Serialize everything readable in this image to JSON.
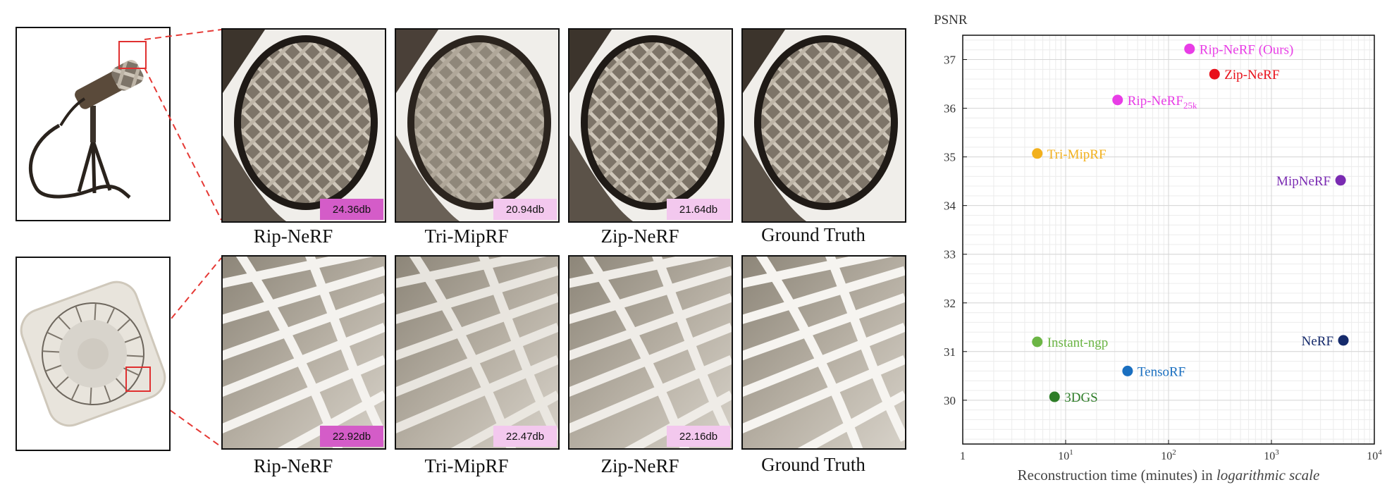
{
  "rows": [
    {
      "scene": "microphone",
      "methods": [
        {
          "label": "Rip-NeRF",
          "score": "24.36db",
          "badge": "strong"
        },
        {
          "label": "Tri-MipRF",
          "score": "20.94db",
          "badge": "light"
        },
        {
          "label": "Zip-NeRF",
          "score": "21.64db",
          "badge": "light"
        },
        {
          "label": "Ground Truth",
          "score": "",
          "badge": ""
        }
      ]
    },
    {
      "scene": "fan",
      "methods": [
        {
          "label": "Rip-NeRF",
          "score": "22.92db",
          "badge": "strong"
        },
        {
          "label": "Tri-MipRF",
          "score": "22.47db",
          "badge": "light"
        },
        {
          "label": "Zip-NeRF",
          "score": "22.16db",
          "badge": "light"
        },
        {
          "label": "Ground Truth",
          "score": "",
          "badge": ""
        }
      ]
    }
  ],
  "chart_data": {
    "type": "scatter",
    "ylabel": "PSNR",
    "xlabel_plain": "Reconstruction time (minutes) in ",
    "xlabel_italic": "logarithmic scale",
    "x_scale": "log",
    "xlim": [
      1,
      10000
    ],
    "ylim": [
      29.1,
      37.5
    ],
    "x_ticks": [
      {
        "base": "1",
        "exp": ""
      },
      {
        "base": "10",
        "exp": "1"
      },
      {
        "base": "10",
        "exp": "2"
      },
      {
        "base": "10",
        "exp": "3"
      },
      {
        "base": "10",
        "exp": "4"
      }
    ],
    "y_ticks": [
      30,
      31,
      32,
      33,
      34,
      35,
      36,
      37
    ],
    "grid": true,
    "points": [
      {
        "name": "Rip-NeRF (Ours)",
        "sub": "",
        "x": 160,
        "y": 37.22,
        "color": "#e83de6",
        "label_side": "right"
      },
      {
        "name": "Zip-NeRF",
        "sub": "",
        "x": 280,
        "y": 36.7,
        "color": "#e8101a",
        "label_side": "right"
      },
      {
        "name": "Rip-NeRF",
        "sub": "25k",
        "x": 32,
        "y": 36.17,
        "color": "#e83de6",
        "label_side": "right"
      },
      {
        "name": "Tri-MipRF",
        "sub": "",
        "x": 5.3,
        "y": 35.07,
        "color": "#f2b01c",
        "label_side": "right"
      },
      {
        "name": "MipNeRF",
        "sub": "",
        "x": 4700,
        "y": 34.52,
        "color": "#7a2bb2",
        "label_side": "left"
      },
      {
        "name": "Instant-ngp",
        "sub": "",
        "x": 5.3,
        "y": 31.2,
        "color": "#6bb544",
        "label_side": "right"
      },
      {
        "name": "NeRF",
        "sub": "",
        "x": 5000,
        "y": 31.23,
        "color": "#152a6b",
        "label_side": "left"
      },
      {
        "name": "TensoRF",
        "sub": "",
        "x": 40,
        "y": 30.6,
        "color": "#1a6fc0",
        "label_side": "right"
      },
      {
        "name": "3DGS",
        "sub": "",
        "x": 7.8,
        "y": 30.07,
        "color": "#2e7d28",
        "label_side": "right"
      }
    ]
  }
}
